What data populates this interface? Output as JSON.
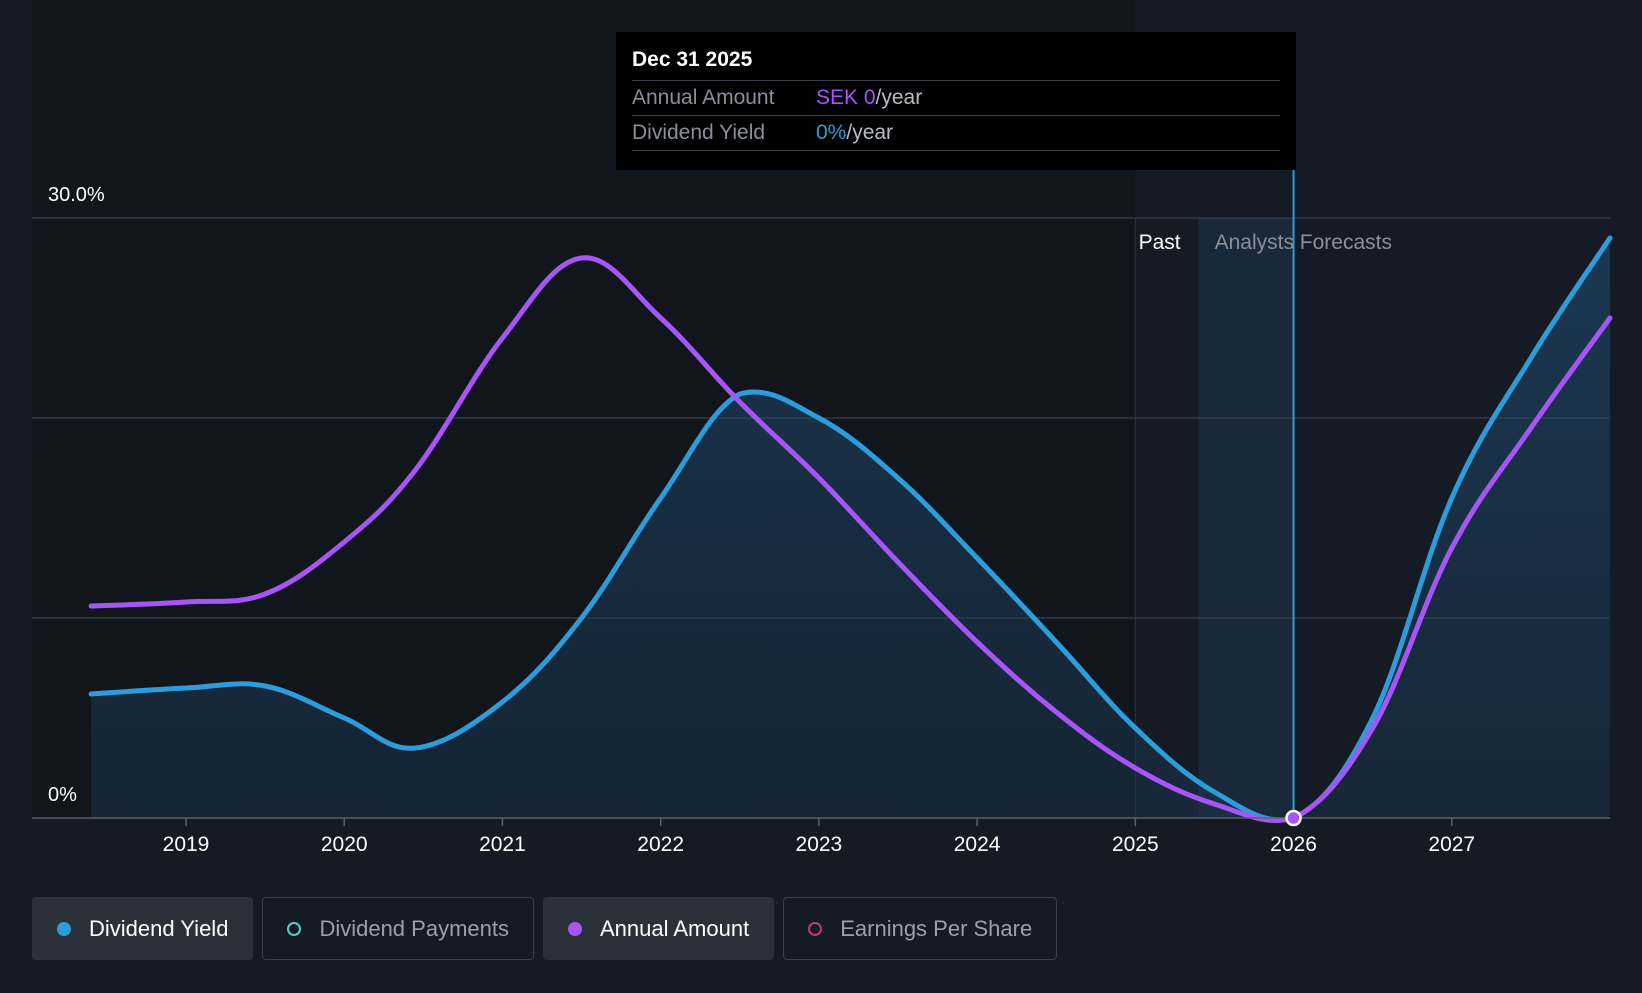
{
  "tooltip": {
    "date": "Dec 31 2025",
    "annual_amount_label": "Annual Amount",
    "annual_amount_value": "SEK 0",
    "annual_amount_unit": "/year",
    "dividend_yield_label": "Dividend Yield",
    "dividend_yield_value": "0%",
    "dividend_yield_unit": "/year"
  },
  "legend": [
    {
      "label": "Dividend Yield",
      "color": "#2d9cdb",
      "filled": true,
      "active": true
    },
    {
      "label": "Dividend Payments",
      "color": "#4fd1c5",
      "filled": false,
      "active": false
    },
    {
      "label": "Annual Amount",
      "color": "#a855f7",
      "filled": true,
      "active": true
    },
    {
      "label": "Earnings Per Share",
      "color": "#c0397a",
      "filled": false,
      "active": false
    }
  ],
  "chart_data": {
    "type": "line",
    "x_tick_labels": [
      "2019",
      "2020",
      "2021",
      "2022",
      "2023",
      "2024",
      "2025",
      "2026",
      "2027"
    ],
    "y_tick_labels": [
      "30.0%",
      "0%"
    ],
    "ylim": [
      0,
      30
    ],
    "xlim": [
      2018.0,
      2028.0
    ],
    "region_labels": {
      "past": "Past",
      "forecast": "Analysts Forecasts"
    },
    "past_end_x": 2025.0,
    "forecast_start_x": 2025.4,
    "selected_x": 2026.0,
    "grid": true,
    "legend_position": "bottom",
    "series": [
      {
        "name": "Dividend Yield",
        "color": "#2d9cdb",
        "points": [
          [
            2018.4,
            6.2
          ],
          [
            2019.0,
            6.5
          ],
          [
            2019.5,
            6.6
          ],
          [
            2020.0,
            5.0
          ],
          [
            2020.45,
            3.5
          ],
          [
            2021.0,
            5.8
          ],
          [
            2021.5,
            10.0
          ],
          [
            2022.0,
            16.0
          ],
          [
            2022.5,
            21.2
          ],
          [
            2023.0,
            20.0
          ],
          [
            2023.5,
            17.0
          ],
          [
            2024.0,
            13.0
          ],
          [
            2024.5,
            8.8
          ],
          [
            2025.0,
            4.5
          ],
          [
            2025.5,
            1.3
          ],
          [
            2026.0,
            0.0
          ],
          [
            2026.5,
            5.0
          ],
          [
            2027.0,
            16.0
          ],
          [
            2027.5,
            23.0
          ],
          [
            2028.0,
            29.0
          ]
        ]
      },
      {
        "name": "Annual Amount",
        "color": "#a855f7",
        "points": [
          [
            2018.4,
            10.6
          ],
          [
            2019.0,
            10.8
          ],
          [
            2019.5,
            11.2
          ],
          [
            2020.0,
            13.8
          ],
          [
            2020.45,
            17.4
          ],
          [
            2021.0,
            24.0
          ],
          [
            2021.5,
            28.0
          ],
          [
            2022.0,
            25.0
          ],
          [
            2022.5,
            20.8
          ],
          [
            2023.0,
            17.0
          ],
          [
            2023.5,
            12.8
          ],
          [
            2024.0,
            8.8
          ],
          [
            2024.5,
            5.3
          ],
          [
            2025.0,
            2.5
          ],
          [
            2025.5,
            0.7
          ],
          [
            2026.0,
            0.0
          ],
          [
            2026.5,
            4.5
          ],
          [
            2027.0,
            13.5
          ],
          [
            2027.5,
            19.5
          ],
          [
            2028.0,
            25.0
          ]
        ]
      }
    ]
  }
}
